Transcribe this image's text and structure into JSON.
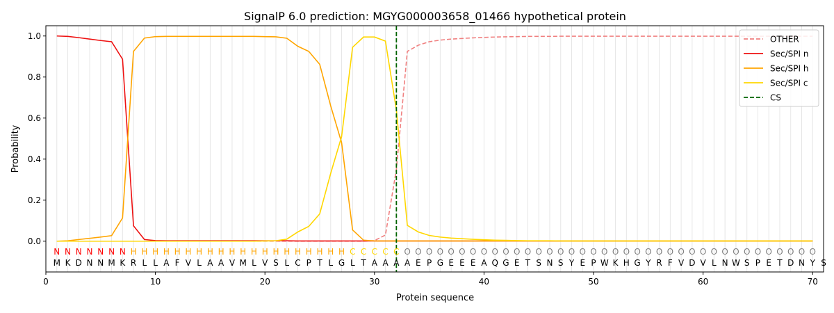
{
  "chart_data": {
    "type": "line",
    "title": "SignalP 6.0 prediction: MGYG000003658_01466 hypothetical protein",
    "xlabel": "Protein sequence",
    "ylabel": "Probability",
    "xlim": [
      0,
      71
    ],
    "ylim": [
      -0.15,
      1.05
    ],
    "x_ticks": [
      0,
      10,
      20,
      30,
      40,
      50,
      60,
      70
    ],
    "y_ticks": [
      0.0,
      0.2,
      0.4,
      0.6,
      0.8,
      1.0
    ],
    "y_tick_labels": [
      "0.0",
      "0.2",
      "0.4",
      "0.6",
      "0.8",
      "1.0"
    ],
    "legend_position": "top-right",
    "sequence": "MKDNNMKRLLAFVLAAVMLVSLCPTLGLTAAAAEPGEEEAQGETSNSYEPWKHGYRFVDVLNWSPETDNYS",
    "region_labels": "NNNNNNNHHHHHHHHHHHHHHHHHHHHCCCCCOOOOOOOOOOOOOOOOOOOOOOOOOOOOOOOOOOOOOO",
    "region_colors": {
      "N": "#ff0000",
      "H": "#ffa500",
      "C": "#ffd700",
      "O": "#808080"
    },
    "cleavage_site": 32,
    "series": [
      {
        "name": "OTHER",
        "color": "#f08080",
        "dash": true,
        "values": [
          0,
          0,
          0,
          0,
          0,
          0,
          0,
          0,
          0,
          0,
          0,
          0,
          0,
          0,
          0,
          0,
          0,
          0,
          0,
          0,
          0,
          0,
          0,
          0,
          0,
          0,
          0,
          0,
          0,
          0.003,
          0.03,
          0.35,
          0.925,
          0.955,
          0.972,
          0.98,
          0.985,
          0.988,
          0.991,
          0.993,
          0.995,
          0.996,
          0.997,
          0.998,
          0.998,
          0.998,
          0.999,
          0.999,
          0.999,
          0.999,
          0.999,
          0.999,
          0.999,
          0.999,
          0.999,
          0.999,
          0.999,
          0.999,
          0.999,
          0.999,
          0.999,
          0.999,
          0.999,
          0.999,
          0.999,
          0.999,
          0.999,
          0.999,
          0.999,
          0.999
        ]
      },
      {
        "name": "Sec/SPI n",
        "color": "#ee1111",
        "dash": false,
        "values": [
          1.0,
          0.998,
          0.992,
          0.985,
          0.978,
          0.972,
          0.887,
          0.075,
          0.008,
          0.003,
          0.002,
          0.002,
          0.002,
          0.002,
          0.002,
          0.002,
          0.002,
          0.002,
          0.002,
          0.002,
          0.002,
          0.002,
          0.001,
          0.001,
          0.001,
          0.001,
          0.001,
          0.001,
          0.001,
          0.001,
          0.001,
          0.001,
          0.001,
          0.001,
          0.001,
          0.001,
          0.001,
          0.001,
          0.001,
          0.001,
          0.001,
          0.001,
          0.001,
          0.001,
          0.001,
          0.001,
          0.001,
          0.001,
          0.001,
          0.001,
          0.001,
          0.001,
          0.001,
          0.001,
          0.001,
          0.001,
          0.001,
          0.001,
          0.001,
          0.001,
          0.001,
          0.001,
          0.001,
          0.001,
          0.001,
          0.001,
          0.001,
          0.001,
          0.001,
          0.001
        ]
      },
      {
        "name": "Sec/SPI h",
        "color": "#ffa500",
        "dash": false,
        "values": [
          0.0,
          0.002,
          0.008,
          0.014,
          0.02,
          0.027,
          0.113,
          0.925,
          0.99,
          0.997,
          0.998,
          0.998,
          0.998,
          0.998,
          0.998,
          0.998,
          0.998,
          0.998,
          0.998,
          0.997,
          0.996,
          0.989,
          0.95,
          0.925,
          0.862,
          0.66,
          0.48,
          0.055,
          0.005,
          0.001,
          0.001,
          0.001,
          0.001,
          0.001,
          0.001,
          0.001,
          0.001,
          0.001,
          0.001,
          0.001,
          0.001,
          0.001,
          0.001,
          0.001,
          0.001,
          0.001,
          0.001,
          0.001,
          0.001,
          0.001,
          0.001,
          0.001,
          0.001,
          0.001,
          0.001,
          0.001,
          0.001,
          0.001,
          0.001,
          0.001,
          0.001,
          0.001,
          0.001,
          0.001,
          0.001,
          0.001,
          0.001,
          0.001,
          0.001,
          0.001
        ]
      },
      {
        "name": "Sec/SPI c",
        "color": "#ffd700",
        "dash": false,
        "values": [
          0.0,
          0.0,
          0.0,
          0.0,
          0.0,
          0.0,
          0.0,
          0.0,
          0.0,
          0.0,
          0.0,
          0.0,
          0.0,
          0.0,
          0.0,
          0.0,
          0.0,
          0.0,
          0.0,
          0.001,
          0.002,
          0.01,
          0.045,
          0.072,
          0.133,
          0.33,
          0.51,
          0.945,
          0.995,
          0.995,
          0.975,
          0.64,
          0.077,
          0.045,
          0.028,
          0.02,
          0.015,
          0.012,
          0.009,
          0.007,
          0.005,
          0.004,
          0.003,
          0.002,
          0.002,
          0.002,
          0.001,
          0.001,
          0.001,
          0.001,
          0.001,
          0.001,
          0.001,
          0.001,
          0.001,
          0.001,
          0.001,
          0.001,
          0.001,
          0.001,
          0.001,
          0.001,
          0.001,
          0.001,
          0.001,
          0.001,
          0.001,
          0.001,
          0.001,
          0.001
        ]
      },
      {
        "name": "CS",
        "color": "#006400",
        "dash": true,
        "vertical_at": 32
      }
    ]
  }
}
